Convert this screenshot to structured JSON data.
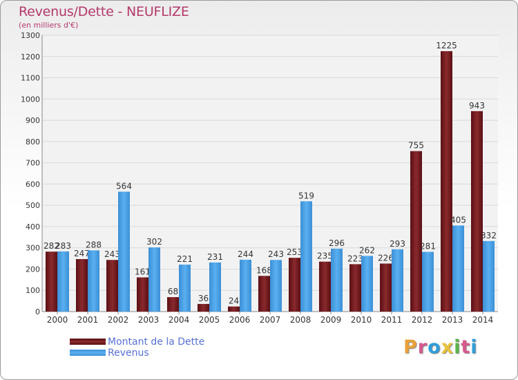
{
  "chart_data": {
    "type": "bar",
    "title": "Revenus/Dette - NEUFLIZE",
    "subtitle": "(en milliers d'€)",
    "categories": [
      "2000",
      "2001",
      "2002",
      "2003",
      "2004",
      "2005",
      "2006",
      "2007",
      "2008",
      "2009",
      "2010",
      "2011",
      "2012",
      "2013",
      "2014"
    ],
    "series": [
      {
        "name": "Montant de la Dette",
        "color": "#7a1f22",
        "values": [
          282,
          247,
          243,
          161,
          68,
          36,
          24,
          168,
          253,
          235,
          223,
          226,
          755,
          1225,
          943
        ]
      },
      {
        "name": "Revenus",
        "color": "#4aa3e8",
        "values": [
          283,
          288,
          564,
          302,
          221,
          231,
          244,
          243,
          519,
          296,
          262,
          293,
          281,
          405,
          332
        ]
      }
    ],
    "ylim": [
      0,
      1300
    ],
    "yticks": [
      0,
      100,
      200,
      300,
      400,
      500,
      600,
      700,
      800,
      900,
      1000,
      1100,
      1200,
      1300
    ],
    "grid": true
  },
  "logo": {
    "letters": [
      "P",
      "r",
      "o",
      "x",
      "i",
      "t",
      "i"
    ],
    "colors": [
      "#e8a13a",
      "#d65a8e",
      "#2f9ed8",
      "#e8c23a",
      "#5ab34a",
      "#d65a8e",
      "#2f9ed8"
    ]
  }
}
